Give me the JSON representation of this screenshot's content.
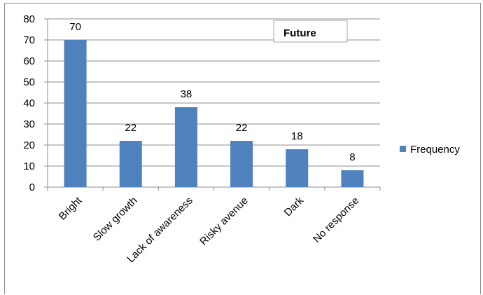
{
  "chart_data": {
    "type": "bar",
    "title": "Future",
    "categories": [
      "Bright",
      "Slow growth",
      "Lack of awareness",
      "Risky avenue",
      "Dark",
      "No response"
    ],
    "series": [
      {
        "name": "Frequency",
        "values": [
          70,
          22,
          38,
          22,
          18,
          8
        ],
        "color": "#4f81bd"
      }
    ],
    "data_labels": [
      "70",
      "22",
      "38",
      "22",
      "18",
      "8"
    ],
    "y_ticks": [
      "0",
      "10",
      "20",
      "30",
      "40",
      "50",
      "60",
      "70",
      "80"
    ],
    "ylim": [
      0,
      80
    ],
    "grid": true,
    "legend_position": "right",
    "xlabel": "",
    "ylabel": ""
  }
}
